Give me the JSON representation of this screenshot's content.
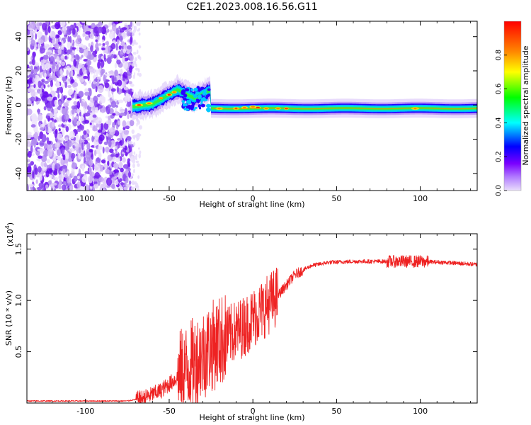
{
  "figure": {
    "title": "C2E1.2023.008.16.56.G11"
  },
  "chart_data": [
    {
      "type": "heatmap",
      "xlabel": "Height of straight line (km)",
      "ylabel": "Frequency (Hz)",
      "xlim": [
        -135,
        134
      ],
      "ylim": [
        -50,
        49
      ],
      "xticks": [
        -100,
        -50,
        0,
        50,
        100
      ],
      "yticks": [
        -40,
        -20,
        0,
        20,
        40
      ],
      "colorbar": {
        "label": "Normalized spectral amplitude",
        "range": [
          0,
          1
        ],
        "ticks": [
          0.0,
          0.2,
          0.4,
          0.6,
          0.8
        ],
        "colormap": [
          "#e9ddfb",
          "#7a00ff",
          "#0000ff",
          "#00ffff",
          "#00ff00",
          "#ffff00",
          "#ff8800",
          "#ff0000"
        ]
      },
      "features": {
        "noise_region_x": [
          -135,
          -72
        ],
        "chirp_start_x": -72,
        "chirp_peak_freq_hz": 9,
        "carrier_freq_hz": -2,
        "carrier_start_x": -25
      }
    },
    {
      "type": "line",
      "xlabel": "Height of straight line (km)",
      "ylabel": "SNR (10 * v/v)",
      "y_multiplier": "(x10",
      "y_multiplier_exp": "4",
      "y_multiplier_close": ")",
      "xlim": [
        -135,
        134
      ],
      "ylim": [
        0,
        1.65
      ],
      "xticks": [
        -100,
        -50,
        0,
        50,
        100
      ],
      "yticks": [
        0.5,
        1.0,
        1.5
      ],
      "yticklabels": [
        "0.5",
        "1.0",
        "1.5"
      ],
      "series_color": "#ee2222",
      "profile": {
        "x": [
          -135,
          -75,
          -65,
          -55,
          -45,
          -35,
          -25,
          -15,
          -5,
          5,
          15,
          25,
          35,
          45,
          60,
          80,
          100,
          115,
          134
        ],
        "y": [
          0.02,
          0.02,
          0.05,
          0.12,
          0.25,
          0.4,
          0.55,
          0.65,
          0.75,
          0.9,
          1.05,
          1.25,
          1.34,
          1.37,
          1.38,
          1.38,
          1.38,
          1.37,
          1.35
        ]
      }
    }
  ]
}
